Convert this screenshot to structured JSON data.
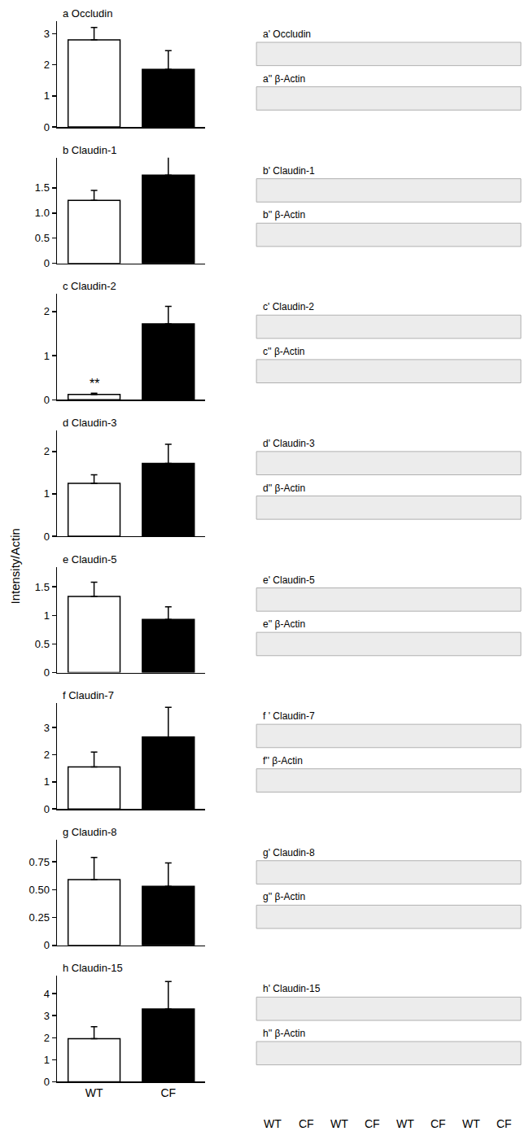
{
  "figure": {
    "ylabel": "Intensity/Actin"
  },
  "chart_data": [
    {
      "type": "bar",
      "title": "a Occludin",
      "categories": [
        "WT",
        "CF"
      ],
      "values": [
        2.8,
        1.85
      ],
      "errors": [
        0.4,
        0.6
      ],
      "colors": [
        "#ffffff",
        "#000000"
      ],
      "ylim": [
        0,
        3.4
      ],
      "yticks": [
        0,
        1,
        2,
        3
      ],
      "grid": false,
      "tick_labels": "y"
    },
    {
      "type": "bar",
      "title": "b Claudin-1",
      "categories": [
        "WT",
        "CF"
      ],
      "values": [
        1.25,
        1.75
      ],
      "errors": [
        0.2,
        0.4
      ],
      "colors": [
        "#ffffff",
        "#000000"
      ],
      "ylim": [
        0,
        2.1
      ],
      "yticks": [
        0,
        0.5,
        {
          "value": 1,
          "label": "1.0"
        },
        1.5
      ],
      "grid": false,
      "tick_labels": "y"
    },
    {
      "type": "bar",
      "title": "c Claudin-2",
      "categories": [
        "WT",
        "CF"
      ],
      "values": [
        0.12,
        1.72
      ],
      "errors": [
        0.03,
        0.4
      ],
      "colors": [
        "#ffffff",
        "#000000"
      ],
      "ylim": [
        0,
        2.4
      ],
      "yticks": [
        0,
        1,
        2
      ],
      "grid": false,
      "tick_labels": "y",
      "annotations": [
        {
          "category": "WT",
          "y": 0.17,
          "text": "**"
        }
      ]
    },
    {
      "type": "bar",
      "title": "d Claudin-3",
      "categories": [
        "WT",
        "CF"
      ],
      "values": [
        1.25,
        1.72
      ],
      "errors": [
        0.2,
        0.45
      ],
      "colors": [
        "#ffffff",
        "#000000"
      ],
      "ylim": [
        0,
        2.5
      ],
      "yticks": [
        0,
        1,
        2
      ],
      "grid": false,
      "tick_labels": "y"
    },
    {
      "type": "bar",
      "title": "e Claudin-5",
      "categories": [
        "WT",
        "CF"
      ],
      "values": [
        1.33,
        0.93
      ],
      "errors": [
        0.25,
        0.22
      ],
      "colors": [
        "#ffffff",
        "#000000"
      ],
      "ylim": [
        0,
        1.85
      ],
      "yticks": [
        0,
        0.5,
        1,
        1.5
      ],
      "grid": false,
      "tick_labels": "y"
    },
    {
      "type": "bar",
      "title": "f Claudin-7",
      "categories": [
        "WT",
        "CF"
      ],
      "values": [
        1.55,
        2.65
      ],
      "errors": [
        0.55,
        1.1
      ],
      "colors": [
        "#ffffff",
        "#000000"
      ],
      "ylim": [
        0,
        3.9
      ],
      "yticks": [
        0,
        1,
        2,
        3
      ],
      "grid": false,
      "tick_labels": "y"
    },
    {
      "type": "bar",
      "title": "g Claudin-8",
      "categories": [
        "WT",
        "CF"
      ],
      "values": [
        0.59,
        0.53
      ],
      "errors": [
        0.2,
        0.21
      ],
      "colors": [
        "#ffffff",
        "#000000"
      ],
      "ylim": [
        0,
        0.95
      ],
      "yticks": [
        0,
        0.25,
        {
          "value": 0.5,
          "label": "0.50"
        },
        0.75
      ],
      "grid": false,
      "tick_labels": "y"
    },
    {
      "type": "bar",
      "title": "h Claudin-15",
      "categories": [
        "WT",
        "CF"
      ],
      "values": [
        1.95,
        3.3
      ],
      "errors": [
        0.55,
        1.25
      ],
      "colors": [
        "#ffffff",
        "#000000"
      ],
      "ylim": [
        0,
        4.8
      ],
      "yticks": [
        0,
        1,
        2,
        3,
        4
      ],
      "grid": false
    }
  ],
  "blots": {
    "lanes": [
      "WT",
      "CF",
      "WT",
      "CF",
      "WT",
      "CF",
      "WT",
      "CF"
    ],
    "panels": [
      {
        "label": "a' Occludin",
        "control": "a'' β-Actin"
      },
      {
        "label": "b' Claudin-1",
        "control": "b'' β-Actin"
      },
      {
        "label": "c' Claudin-2",
        "control": "c'' β-Actin"
      },
      {
        "label": "d' Claudin-3",
        "control": "d'' β-Actin"
      },
      {
        "label": "e' Claudin-5",
        "control": "e'' β-Actin"
      },
      {
        "label": "f ' Claudin-7",
        "control": "f'' β-Actin"
      },
      {
        "label": "g' Claudin-8",
        "control": "g'' β-Actin"
      },
      {
        "label": "h' Claudin-15",
        "control": "h'' β-Actin"
      }
    ]
  }
}
